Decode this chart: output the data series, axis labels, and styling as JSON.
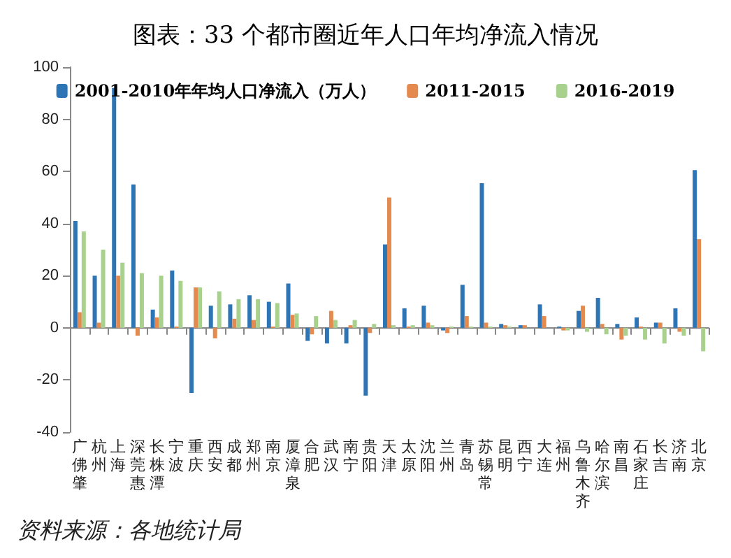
{
  "chart_data": {
    "type": "bar",
    "title": "图表：33 个都市圈近年人口年均净流入情况",
    "categories": [
      "广佛肇",
      "杭州",
      "上海",
      "深莞惠",
      "长株潭",
      "宁波",
      "重庆",
      "西安",
      "成都",
      "郑州",
      "南京",
      "厦漳泉",
      "合肥",
      "武汉",
      "南宁",
      "贵阳",
      "天津",
      "太原",
      "沈阳",
      "兰州",
      "青岛",
      "苏锡常",
      "昆明",
      "西宁",
      "大连",
      "福州",
      "乌鲁木齐",
      "哈尔滨",
      "南昌",
      "石家庄",
      "长吉",
      "济南",
      "北京"
    ],
    "series": [
      {
        "name": "2001-2010年年均人口净流入（万人）",
        "color": "#2e75b6",
        "values": [
          41,
          20,
          92,
          55,
          7,
          22,
          -25,
          8.5,
          9,
          12.5,
          10,
          17,
          -5,
          -6,
          -6,
          -26,
          32,
          7.5,
          8.5,
          -1,
          16.5,
          55.5,
          1.5,
          1,
          9,
          0.5,
          6.5,
          11.5,
          1.5,
          4,
          2,
          7.5,
          60.5
        ]
      },
      {
        "name": "2011-2015",
        "color": "#e58a4e",
        "values": [
          6,
          2,
          20,
          -3,
          4,
          0.5,
          15.5,
          -4,
          3.5,
          3,
          0.5,
          5,
          -2.5,
          6.5,
          1,
          -2,
          50,
          0.5,
          2,
          -2,
          4.5,
          2,
          1,
          1,
          4.5,
          -1,
          8.5,
          1.5,
          -4.5,
          0.5,
          2,
          -1.5,
          34
        ]
      },
      {
        "name": "2016-2019",
        "color": "#a9d18e",
        "values": [
          37,
          30,
          25,
          21,
          20,
          18,
          15.5,
          14,
          11,
          11,
          9.5,
          5.5,
          4.5,
          3,
          3,
          1.5,
          1,
          1,
          1,
          0.5,
          0.5,
          0.5,
          0.5,
          0,
          0,
          -1,
          -1.5,
          -2.5,
          -3,
          -4.5,
          -6,
          -3,
          -9
        ]
      }
    ],
    "ylim": [
      -40,
      100
    ],
    "yticks": [
      -40,
      -20,
      0,
      20,
      40,
      60,
      80,
      100
    ],
    "legend": "top",
    "annotations": [
      "资料来源：各地统计局"
    ]
  }
}
